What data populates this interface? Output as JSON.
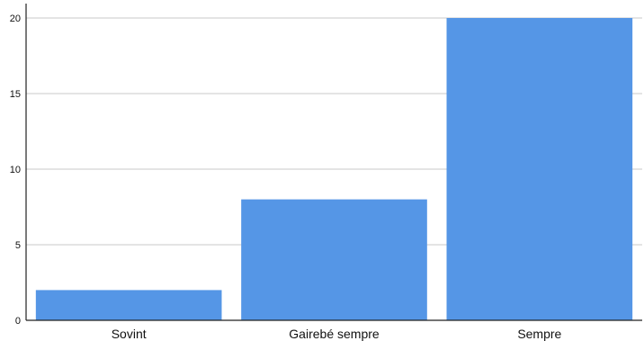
{
  "chart_data": {
    "type": "bar",
    "categories": [
      "Sovint",
      "Gairebé sempre",
      "Sempre"
    ],
    "values": [
      2,
      8,
      20
    ],
    "yticks": [
      0,
      5,
      10,
      15,
      20
    ],
    "ylim": [
      0,
      20
    ],
    "bar_color": "#5596e6",
    "grid": "horizontal",
    "legend": "none"
  }
}
